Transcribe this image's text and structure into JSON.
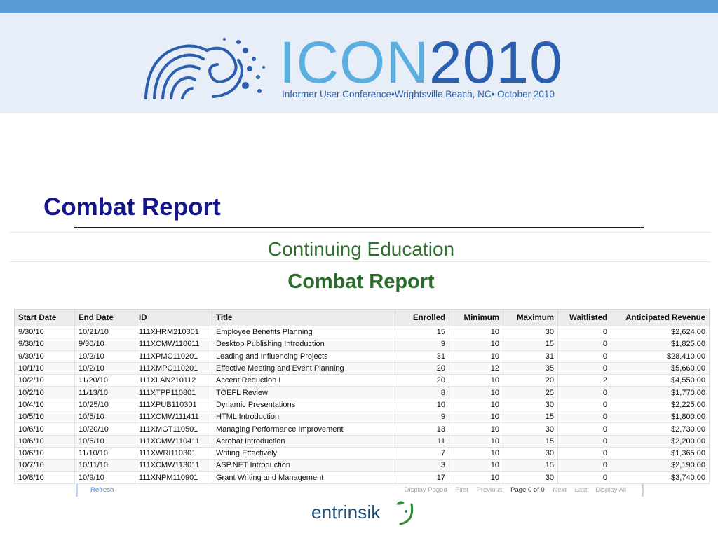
{
  "banner": {
    "logo_word": "ICON",
    "logo_year": "2010",
    "subtitle": "Informer User Conference•Wrightsville Beach, NC• October 2010",
    "colors": {
      "strip": "#5b9bd5",
      "banner_bg": "#e8eef7",
      "icon_light": "#5aaee0",
      "icon_dark": "#2a5fb0"
    }
  },
  "slide_title": "Combat Report",
  "report": {
    "organization": "Continuing Education",
    "name": "Combat Report",
    "columns": [
      "Start Date",
      "End Date",
      "ID",
      "Title",
      "Enrolled",
      "Minimum",
      "Maximum",
      "Waitlisted",
      "Anticipated Revenue"
    ],
    "rows": [
      [
        "9/30/10",
        "10/21/10",
        "111XHRM210301",
        "Employee Benefits Planning",
        "15",
        "10",
        "30",
        "0",
        "$2,624.00"
      ],
      [
        "9/30/10",
        "9/30/10",
        "111XCMW110611",
        "Desktop Publishing Introduction",
        "9",
        "10",
        "15",
        "0",
        "$1,825.00"
      ],
      [
        "9/30/10",
        "10/2/10",
        "111XPMC110201",
        "Leading and Influencing Projects",
        "31",
        "10",
        "31",
        "0",
        "$28,410.00"
      ],
      [
        "10/1/10",
        "10/2/10",
        "111XMPC110201",
        "Effective Meeting and Event Planning",
        "20",
        "12",
        "35",
        "0",
        "$5,660.00"
      ],
      [
        "10/2/10",
        "11/20/10",
        "111XLAN210112",
        "Accent Reduction I",
        "20",
        "10",
        "20",
        "2",
        "$4,550.00"
      ],
      [
        "10/2/10",
        "11/13/10",
        "111XTPP110801",
        "TOEFL Review",
        "8",
        "10",
        "25",
        "0",
        "$1,770.00"
      ],
      [
        "10/4/10",
        "10/25/10",
        "111XPUB110301",
        "Dynamic Presentations",
        "10",
        "10",
        "30",
        "0",
        "$2,225.00"
      ],
      [
        "10/5/10",
        "10/5/10",
        "111XCMW111411",
        "HTML Introduction",
        "9",
        "10",
        "15",
        "0",
        "$1,800.00"
      ],
      [
        "10/6/10",
        "10/20/10",
        "111XMGT110501",
        "Managing Performance Improvement",
        "13",
        "10",
        "30",
        "0",
        "$2,730.00"
      ],
      [
        "10/6/10",
        "10/6/10",
        "111XCMW110411",
        "Acrobat Introduction",
        "11",
        "10",
        "15",
        "0",
        "$2,200.00"
      ],
      [
        "10/6/10",
        "11/10/10",
        "111XWRI110301",
        "Writing Effectively",
        "7",
        "10",
        "30",
        "0",
        "$1,365.00"
      ],
      [
        "10/7/10",
        "10/11/10",
        "111XCMW113011",
        "ASP.NET Introduction",
        "3",
        "10",
        "15",
        "0",
        "$2,190.00"
      ],
      [
        "10/8/10",
        "10/9/10",
        "111XNPM110901",
        "Grant Writing and Management",
        "17",
        "10",
        "30",
        "0",
        "$3,740.00"
      ]
    ]
  },
  "pager": {
    "refresh": "Refresh",
    "display_paged": "Display Paged",
    "first": "First",
    "previous": "Previous",
    "status": "Page 0 of 0",
    "next": "Next",
    "last": "Last",
    "display_all": "Display All"
  },
  "footer": {
    "brand": "entrinsik"
  }
}
